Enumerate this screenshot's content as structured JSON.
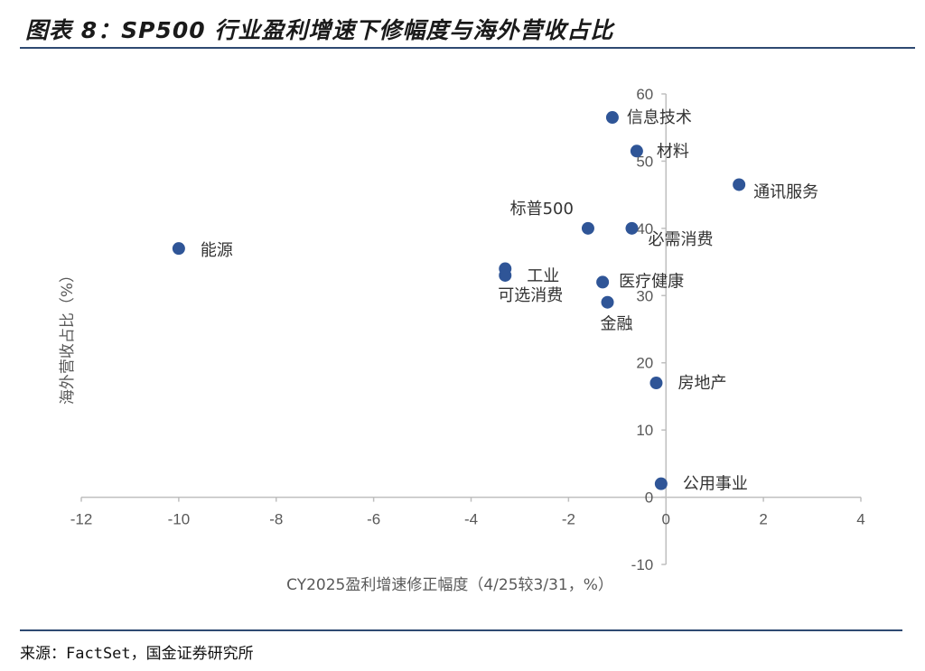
{
  "title": "图表 8：SP500 行业盈利增速下修幅度与海外营收占比",
  "source": "来源：FactSet，国金证券研究所",
  "colors": {
    "marker": "#2f5597",
    "axis": "#bfbfbf",
    "rule": "#2e4a72"
  },
  "chart_data": {
    "type": "scatter",
    "xlabel": "CY2025盈利增速修正幅度（4/25较3/31，%）",
    "ylabel": "海外营收占比（%）",
    "xlim": [
      -12,
      4
    ],
    "ylim": [
      -10,
      60
    ],
    "xticks": [
      -12,
      -10,
      -8,
      -6,
      -4,
      -2,
      0,
      2,
      4
    ],
    "yticks": [
      -10,
      0,
      10,
      20,
      30,
      40,
      50,
      60
    ],
    "grid": false,
    "points": [
      {
        "label": "信息技术",
        "x": -1.1,
        "y": 56.5
      },
      {
        "label": "材料",
        "x": -0.6,
        "y": 51.5
      },
      {
        "label": "通讯服务",
        "x": 1.5,
        "y": 46.5
      },
      {
        "label": "标普500",
        "x": -1.6,
        "y": 40.0
      },
      {
        "label": "必需消费",
        "x": -0.7,
        "y": 40.0
      },
      {
        "label": "能源",
        "x": -10.0,
        "y": 37.0
      },
      {
        "label": "工业",
        "x": -3.3,
        "y": 34.0
      },
      {
        "label": "可选消费",
        "x": -3.3,
        "y": 33.0
      },
      {
        "label": "医疗健康",
        "x": -1.3,
        "y": 32.0
      },
      {
        "label": "金融",
        "x": -1.2,
        "y": 29.0
      },
      {
        "label": "房地产",
        "x": -0.2,
        "y": 17.0
      },
      {
        "label": "公用事业",
        "x": -0.1,
        "y": 2.0
      }
    ]
  }
}
